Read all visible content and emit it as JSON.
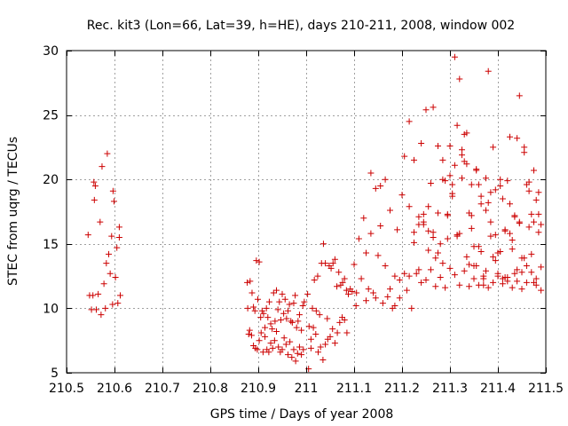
{
  "chart_data": {
    "type": "scatter",
    "title": "Rec. kit3 (Lon=66, Lat=39, h=HE), days 210-211, 2008, window 002",
    "xlabel": "GPS time / Days of year 2008",
    "ylabel": "STEC from uqrg / TECUs",
    "xlim": [
      210.5,
      211.5
    ],
    "ylim": [
      5,
      30
    ],
    "xticks": [
      210.5,
      210.6,
      210.7,
      210.8,
      210.9,
      211,
      211.1,
      211.2,
      211.3,
      211.4,
      211.5
    ],
    "xtick_labels": [
      "210.5",
      "210.6",
      "210.7",
      "210.8",
      "210.9",
      "211",
      "211.1",
      "211.2",
      "211.3",
      "211.4",
      "211.5"
    ],
    "yticks": [
      5,
      10,
      15,
      20,
      25,
      30
    ],
    "ytick_labels": [
      "5",
      "10",
      "15",
      "20",
      "25",
      "30"
    ],
    "grid": true,
    "marker": "plus",
    "color": "#cc0000",
    "series": [
      {
        "x": [
          210.545,
          210.548,
          210.552,
          210.555,
          210.557,
          210.558,
          210.56,
          210.562,
          210.566,
          210.57,
          210.572,
          210.574,
          210.578,
          210.581,
          210.583,
          210.585,
          210.588,
          210.591,
          210.594,
          210.596,
          210.597,
          210.599,
          210.602,
          210.605,
          210.607,
          210.61,
          210.61,
          210.612,
          210.877,
          210.88,
          210.883,
          210.887,
          210.89,
          210.893,
          210.896,
          210.899,
          210.902,
          210.905,
          210.908,
          210.911,
          210.914,
          210.917,
          210.92,
          210.923,
          210.926,
          210.929,
          210.932,
          210.935,
          210.938,
          210.941,
          210.944,
          210.947,
          210.95,
          210.953,
          210.956,
          210.959,
          210.962,
          210.965,
          210.968,
          210.971,
          210.974,
          210.977,
          210.98,
          210.983,
          210.986,
          210.99,
          210.993,
          210.996,
          210.878,
          210.882,
          210.886,
          210.89,
          210.894,
          210.898,
          210.902,
          210.906,
          210.91,
          210.914,
          210.918,
          210.922,
          210.926,
          210.93,
          210.934,
          210.938,
          210.942,
          210.946,
          210.95,
          210.954,
          210.958,
          210.962,
          210.966,
          210.97,
          210.974,
          210.978,
          210.982,
          210.986,
          210.99,
          210.994,
          211.003,
          211.006,
          211.01,
          211.013,
          211.017,
          211.021,
          211.024,
          211.028,
          211.032,
          211.036,
          211.04,
          211.044,
          211.048,
          211.052,
          211.056,
          211.06,
          211.064,
          211.068,
          211.072,
          211.076,
          211.08,
          211.084,
          211.088,
          211.092,
          211.096,
          211.1,
          211.104,
          211.005,
          211.01,
          211.015,
          211.02,
          211.025,
          211.03,
          211.035,
          211.04,
          211.045,
          211.05,
          211.055,
          211.06,
          211.065,
          211.07,
          211.075,
          211.08,
          211.085,
          211.105,
          211.11,
          211.115,
          211.12,
          211.125,
          211.13,
          211.135,
          211.14,
          211.145,
          211.15,
          211.155,
          211.16,
          211.165,
          211.17,
          211.175,
          211.18,
          211.185,
          211.19,
          211.195,
          211.2,
          211.205,
          211.21,
          211.215,
          211.22,
          211.225,
          211.23,
          211.235,
          211.24,
          211.245,
          211.25,
          211.255,
          211.26,
          211.265,
          211.27,
          211.275,
          211.28,
          211.285,
          211.29,
          211.295,
          211.3,
          211.305,
          211.31,
          211.315,
          211.32,
          211.325,
          211.33,
          211.335,
          211.34,
          211.345,
          211.35,
          211.355,
          211.36,
          211.365,
          211.37,
          211.375,
          211.38,
          211.385,
          211.39,
          211.395,
          211.4,
          211.405,
          211.41,
          211.415,
          211.42,
          211.425,
          211.43,
          211.435,
          211.44,
          211.445,
          211.45,
          211.455,
          211.46,
          211.465,
          211.47,
          211.475,
          211.48,
          211.485,
          211.49,
          211.125,
          211.135,
          211.145,
          211.155,
          211.165,
          211.175,
          211.185,
          211.195,
          211.205,
          211.215,
          211.225,
          211.235,
          211.245,
          211.255,
          211.265,
          211.275,
          211.285,
          211.295,
          211.305,
          211.315,
          211.325,
          211.335,
          211.345,
          211.355,
          211.365,
          211.375,
          211.385,
          211.395,
          211.405,
          211.415,
          211.425,
          211.435,
          211.445,
          211.455,
          211.465,
          211.475,
          211.485,
          211.215,
          211.225,
          211.235,
          211.245,
          211.255,
          211.265,
          211.275,
          211.285,
          211.295,
          211.305,
          211.315,
          211.325,
          211.335,
          211.345,
          211.355,
          211.365,
          211.375,
          211.385,
          211.395,
          211.405,
          211.415,
          211.425,
          211.435,
          211.445,
          211.455,
          211.465,
          211.475,
          211.485,
          211.49,
          211.3,
          211.31,
          211.32,
          211.33,
          211.34,
          211.35,
          211.36,
          211.37,
          211.38,
          211.39,
          211.4,
          211.41,
          211.42,
          211.43,
          211.44,
          211.45,
          211.46,
          211.47,
          211.48,
          211.24,
          211.25,
          211.26,
          211.27,
          211.28,
          211.29,
          211.3,
          211.31,
          211.32,
          211.33,
          211.34,
          211.35,
          211.36,
          211.37,
          211.38,
          211.39,
          211.4,
          211.41,
          211.42,
          211.43,
          211.44,
          211.45,
          211.46,
          211.47,
          211.48,
          211.49
        ],
        "y": [
          15.7,
          11.0,
          9.9,
          11.0,
          19.8,
          18.4,
          19.5,
          9.9,
          11.1,
          16.7,
          9.5,
          21.0,
          11.9,
          10.0,
          13.5,
          22.0,
          14.2,
          12.7,
          15.6,
          10.3,
          19.1,
          18.3,
          12.4,
          14.7,
          10.4,
          16.3,
          15.5,
          11.0,
          12.0,
          8.0,
          12.1,
          11.2,
          10.1,
          9.8,
          13.7,
          10.7,
          13.6,
          9.3,
          9.8,
          9.6,
          8.5,
          10.0,
          9.3,
          10.5,
          8.8,
          8.4,
          11.2,
          9.0,
          11.4,
          9.9,
          10.5,
          9.1,
          11.1,
          9.6,
          10.7,
          9.2,
          9.8,
          10.3,
          9.0,
          8.9,
          10.4,
          11.0,
          8.5,
          9.0,
          9.5,
          8.3,
          10.2,
          10.5,
          10.0,
          8.3,
          7.9,
          7.1,
          6.9,
          6.8,
          7.5,
          8.1,
          6.6,
          7.8,
          6.8,
          6.6,
          7.3,
          6.9,
          7.5,
          8.2,
          7.0,
          6.6,
          6.8,
          7.7,
          7.2,
          6.4,
          7.4,
          6.2,
          6.8,
          5.9,
          6.5,
          7.0,
          6.4,
          6.8,
          11.1,
          8.6,
          6.9,
          10.0,
          12.2,
          9.8,
          12.5,
          9.5,
          13.5,
          15.0,
          13.5,
          9.2,
          13.3,
          13.1,
          13.5,
          13.8,
          11.7,
          12.8,
          11.8,
          12.0,
          12.3,
          11.4,
          11.1,
          11.5,
          11.3,
          13.4,
          10.2,
          5.3,
          7.6,
          8.5,
          8.0,
          6.6,
          7.0,
          6.0,
          7.2,
          7.6,
          7.8,
          8.4,
          7.3,
          8.1,
          8.9,
          9.3,
          9.1,
          8.1,
          11.2,
          15.4,
          12.3,
          17.0,
          10.6,
          11.5,
          20.5,
          11.2,
          10.8,
          14.1,
          19.5,
          10.4,
          20.0,
          10.9,
          17.6,
          10.0,
          10.2,
          16.1,
          10.8,
          18.8,
          21.8,
          11.4,
          24.5,
          10.0,
          21.5,
          12.7,
          16.5,
          12.0,
          17.3,
          12.2,
          16.0,
          13.0,
          25.6,
          11.7,
          22.6,
          12.4,
          21.5,
          11.6,
          17.3,
          13.1,
          18.9,
          12.6,
          24.2,
          11.8,
          22.3,
          12.9,
          23.6,
          11.7,
          17.2,
          12.3,
          20.7,
          11.8,
          18.1,
          12.5,
          20.1,
          11.6,
          19.0,
          12.0,
          15.7,
          12.5,
          19.5,
          11.9,
          16.0,
          12.4,
          23.3,
          11.6,
          17.2,
          12.1,
          26.5,
          11.5,
          22.5,
          12.0,
          19.8,
          12.8,
          20.7,
          11.8,
          19.0,
          11.4,
          14.3,
          15.8,
          19.3,
          16.4,
          13.3,
          11.5,
          12.5,
          12.2,
          12.7,
          12.5,
          15.9,
          13.0,
          16.5,
          14.5,
          15.5,
          14.3,
          13.5,
          17.2,
          18.7,
          15.6,
          21.9,
          14.0,
          16.2,
          13.3,
          14.4,
          12.9,
          15.6,
          13.7,
          14.4,
          12.4,
          15.8,
          12.7,
          16.7,
          13.9,
          16.3,
          12.0,
          15.9,
          17.9,
          15.1,
          17.1,
          16.7,
          17.9,
          15.9,
          17.4,
          20.0,
          15.4,
          19.6,
          15.7,
          20.1,
          21.2,
          19.6,
          20.8,
          18.7,
          17.6,
          16.7,
          19.2,
          20.0,
          16.1,
          18.1,
          17.1,
          16.6,
          22.1,
          19.1,
          16.7,
          17.3,
          16.5,
          20.3,
          29.5,
          27.8,
          21.4,
          13.4,
          14.8,
          19.6,
          11.8,
          28.4,
          22.5,
          14.3,
          12.3,
          19.9,
          14.6,
          23.2,
          13.9,
          19.6,
          17.3,
          18.4,
          22.8,
          25.4,
          19.7,
          13.9,
          15.0,
          19.9,
          22.6,
          21.1,
          15.8,
          23.5,
          17.4,
          13.3,
          14.8,
          12.3,
          18.2,
          14.0,
          12.7,
          18.5,
          12.1,
          15.3,
          13.0,
          12.8,
          13.3,
          14.2,
          12.3,
          13.2
        ]
      }
    ]
  }
}
